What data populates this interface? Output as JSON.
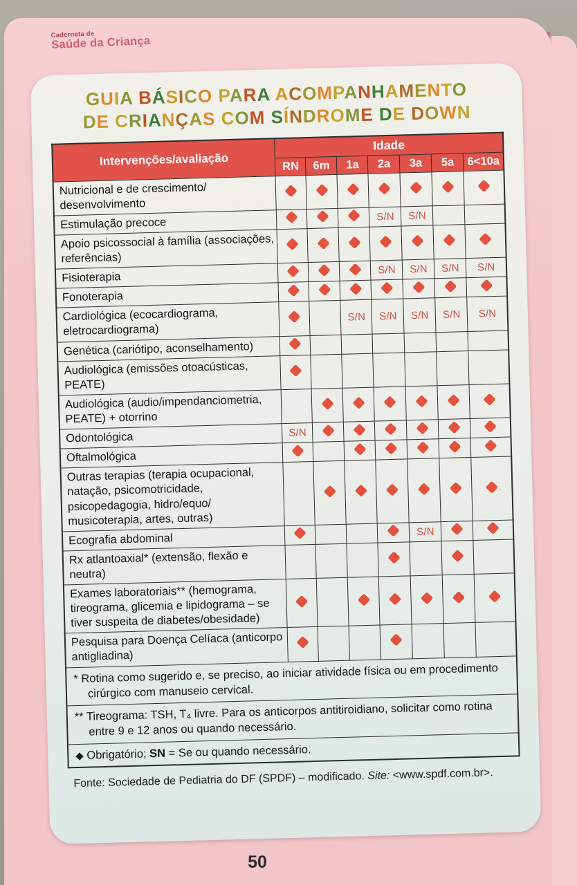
{
  "brand": {
    "top": "Caderneta de",
    "bottom": "Saúde da Criança"
  },
  "title": {
    "line1": "GUIA BÁSICO PARA ACOMPANHAMENTO",
    "line2": "DE CRIANÇAS COM SÍNDROME DE DOWN",
    "letter_palette": [
      "#9d9734",
      "#dd8a2e",
      "#c4a42f",
      "#86953a",
      "#c05327",
      "#417f3b",
      "#cf9a30",
      "#b06a28"
    ]
  },
  "colors": {
    "header_bg": "#e0524a",
    "diamond": "#e2523e",
    "sn_text": "#cc4f44",
    "page_pink": "#f3c7ca"
  },
  "table": {
    "left_header": "Intervenções/avaliação",
    "group_header": "Idade",
    "age_columns": [
      "RN",
      "6m",
      "1a",
      "2a",
      "3a",
      "5a",
      "6<10a"
    ],
    "rows": [
      {
        "label": "Nutricional e de crescimento/ desenvolvimento",
        "cells": [
          "D",
          "D",
          "D",
          "D",
          "D",
          "D",
          "D"
        ]
      },
      {
        "label": "Estimulação precoce",
        "cells": [
          "D",
          "D",
          "D",
          "S/N",
          "S/N",
          "",
          ""
        ]
      },
      {
        "label": "Apoio psicossocial à família (associações, referências)",
        "cells": [
          "D",
          "D",
          "D",
          "D",
          "D",
          "D",
          "D"
        ]
      },
      {
        "label": "Fisioterapia",
        "cells": [
          "D",
          "D",
          "D",
          "S/N",
          "S/N",
          "S/N",
          "S/N"
        ]
      },
      {
        "label": "Fonoterapia",
        "cells": [
          "D",
          "D",
          "D",
          "D",
          "D",
          "D",
          "D"
        ]
      },
      {
        "label": "Cardiológica (ecocardiograma, eletrocardiograma)",
        "cells": [
          "D",
          "",
          "S/N",
          "S/N",
          "S/N",
          "S/N",
          "S/N"
        ]
      },
      {
        "label": "Genética (cariótipo, aconselhamento)",
        "cells": [
          "D",
          "",
          "",
          "",
          "",
          "",
          ""
        ]
      },
      {
        "label": "Audiológica (emissões otoacústicas, PEATE)",
        "cells": [
          "D",
          "",
          "",
          "",
          "",
          "",
          ""
        ]
      },
      {
        "label": "Audiológica (audio/impendanciometria, PEATE) + otorrino",
        "cells": [
          "",
          "D",
          "D",
          "D",
          "D",
          "D",
          "D"
        ]
      },
      {
        "label": "Odontológica",
        "cells": [
          "S/N",
          "D",
          "D",
          "D",
          "D",
          "D",
          "D"
        ]
      },
      {
        "label": "Oftalmológica",
        "cells": [
          "D",
          "",
          "D",
          "D",
          "D",
          "D",
          "D"
        ]
      },
      {
        "label": "Outras terapias (terapia ocupacional, natação, psicomotricidade, psicopedagogia, hidro/equo/ musicoterapia, artes, outras)",
        "cells": [
          "",
          "D",
          "D",
          "D",
          "D",
          "D",
          "D"
        ]
      },
      {
        "label": "Ecografia abdominal",
        "cells": [
          "D",
          "",
          "",
          "D",
          "S/N",
          "D",
          "D"
        ]
      },
      {
        "label": "Rx atlantoaxial* (extensão, flexão e neutra)",
        "cells": [
          "",
          "",
          "",
          "D",
          "",
          "D",
          ""
        ]
      },
      {
        "label": "Exames laboratoriais** (hemograma, tireograma, glicemia e lipidograma – se tiver suspeita de diabetes/obesidade)",
        "cells": [
          "D",
          "",
          "D",
          "D",
          "D",
          "D",
          "D"
        ]
      },
      {
        "label": "Pesquisa para Doença Celíaca (anticorpo antigliadina)",
        "cells": [
          "D",
          "",
          "",
          "D",
          "",
          "",
          ""
        ]
      }
    ],
    "footnotes": [
      {
        "text": "* Rotina como sugerido e, se preciso, ao iniciar atividade física ou em procedimento cirúrgico com manuseio cervical."
      },
      {
        "text": "** Tireograma: TSH, T₄ livre. Para os anticorpos antitiroidiano, solicitar como rotina entre 9 e 12 anos ou quando necessário."
      },
      {
        "marker": "◆",
        "prefix": " Obrigatório; ",
        "bold": "SN",
        "suffix": " = Se ou quando necessário."
      }
    ]
  },
  "source": {
    "prefix": "Fonte: Sociedade de Pediatria do DF (SPDF) – modificado. ",
    "site_label": "Site:",
    "site_value": " <www.spdf.com.br>."
  },
  "page_number": "50"
}
